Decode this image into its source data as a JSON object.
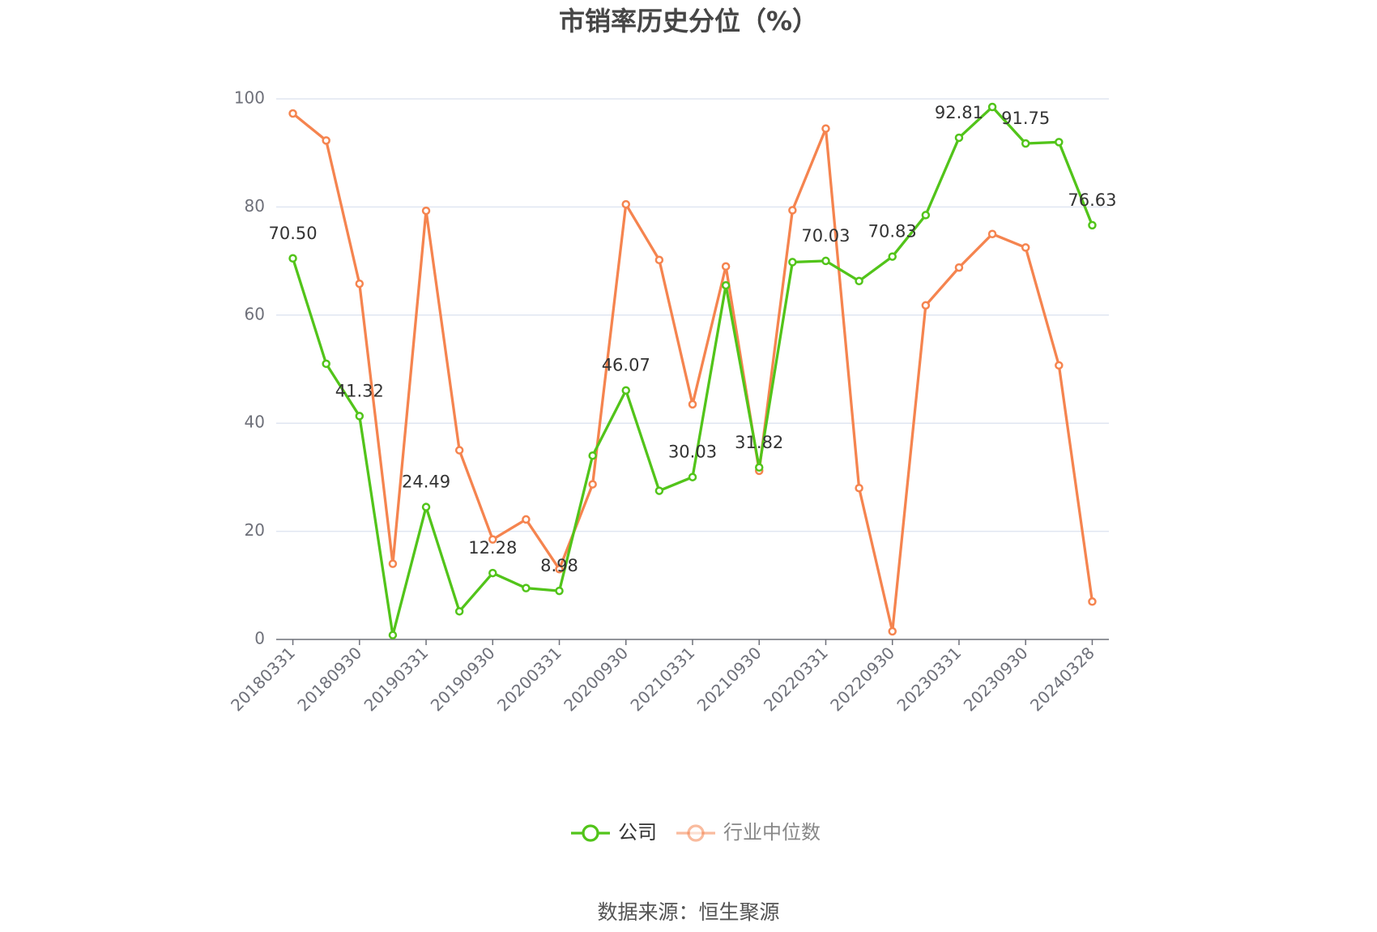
{
  "chart_data": {
    "type": "line",
    "title": "市销率历史分位（%）",
    "categories": [
      "20180331",
      null,
      "20180930",
      null,
      "20190331",
      null,
      "20190930",
      null,
      "20200331",
      null,
      "20200930",
      null,
      "20210331",
      null,
      "20210930",
      null,
      "20220331",
      null,
      "20220930",
      null,
      "20230331",
      null,
      "20230930",
      null,
      "20240328"
    ],
    "series": [
      {
        "name": "公司",
        "color": "#52c41a",
        "values": [
          70.5,
          51,
          41.32,
          0.8,
          24.49,
          5.2,
          12.28,
          9.5,
          8.98,
          34,
          46.07,
          27.5,
          30.03,
          65.5,
          31.82,
          69.8,
          70.03,
          66.3,
          70.83,
          78.5,
          92.81,
          98.5,
          91.75,
          92,
          76.63
        ],
        "value_labels": [
          "70.50",
          null,
          "41.32",
          null,
          "24.49",
          null,
          "12.28",
          null,
          "8.98",
          null,
          "46.07",
          null,
          "30.03",
          null,
          "31.82",
          null,
          "70.03",
          null,
          "70.83",
          null,
          "92.81",
          null,
          "91.75",
          null,
          "76.63"
        ]
      },
      {
        "name": "行业中位数",
        "color": "#f5844f",
        "values": [
          97.3,
          92.3,
          65.8,
          14,
          79.3,
          35,
          18.5,
          22.2,
          13,
          28.7,
          80.5,
          70.2,
          43.5,
          69,
          31.2,
          79.4,
          94.5,
          28,
          1.5,
          61.8,
          68.8,
          75,
          72.5,
          50.7,
          7
        ]
      }
    ],
    "ylim": [
      0,
      100
    ],
    "yticks": [
      0,
      20,
      40,
      60,
      80,
      100
    ],
    "grid": true,
    "source": "数据来源：恒生聚源"
  }
}
